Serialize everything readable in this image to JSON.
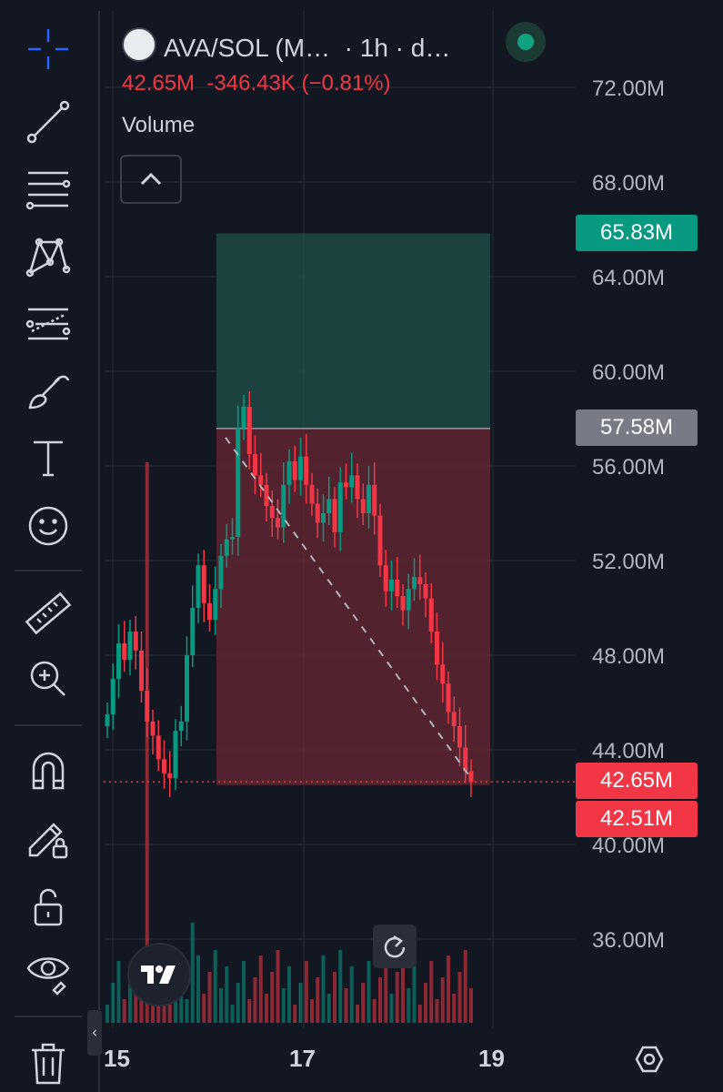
{
  "header": {
    "symbol": "AVA/SOL (M…",
    "interval": "· 1h · d…",
    "ohlc_price": "42.65M",
    "ohlc_change": "-346.43K (−0.81%)",
    "indicator": "Volume"
  },
  "toolbar": {
    "tools": [
      "crosshair-icon",
      "trend-line-icon",
      "fib-retracement-icon",
      "pattern-icon",
      "forecast-icon",
      "brush-icon",
      "text-icon",
      "emoji-icon",
      "ruler-icon",
      "zoom-in-icon",
      "magnet-icon",
      "lock-drawing-icon",
      "unlock-icon",
      "eye-icon",
      "trash-icon"
    ]
  },
  "price_axis": {
    "labels": [
      "72.00M",
      "68.00M",
      "64.00M",
      "60.00M",
      "56.00M",
      "52.00M",
      "48.00M",
      "44.00M",
      "40.00M",
      "36.00M"
    ],
    "tags": {
      "target": "65.83M",
      "entry": "57.58M",
      "current": "42.65M",
      "stop": "42.51M"
    }
  },
  "time_axis": {
    "labels": [
      "15",
      "17",
      "19"
    ]
  },
  "colors": {
    "up": "#089981",
    "down": "#f23645",
    "profit_zone": "#1f4a45",
    "loss_zone": "#5a2530",
    "entry_tag": "#787b86"
  },
  "chart_data": {
    "type": "candlestick",
    "ylim": [
      32,
      76
    ],
    "x_ticks": [
      "15",
      "17",
      "19"
    ],
    "position": {
      "entry": 57.58,
      "target": 65.83,
      "stop": 42.51
    },
    "current_price": 42.65,
    "series": [
      {
        "name": "price",
        "close": [
          45.5,
          47,
          48.5,
          47.8,
          49,
          48.2,
          46.5,
          45.2,
          44.6,
          43.6,
          43.0,
          42.8,
          44.8,
          45.2,
          48,
          50,
          51.8,
          50.2,
          49.5,
          50.8,
          52.2,
          52.9,
          53.0,
          57.6,
          58.5,
          56.5,
          55.6,
          55.2,
          54.3,
          53.8,
          53.4,
          55.2,
          56.2,
          55.4,
          56.4,
          55.2,
          54.4,
          53.6,
          54.0,
          54.6,
          53.2,
          55.3,
          55.1,
          55.6,
          54.6,
          54.0,
          55.2,
          53.9,
          51.8,
          50.7,
          51.2,
          50.5,
          49.9,
          50.8,
          51.3,
          51.0,
          50.4,
          49.0,
          47.6,
          46.8,
          45.6,
          45.0,
          44.1,
          43.1,
          42.65
        ]
      }
    ]
  }
}
